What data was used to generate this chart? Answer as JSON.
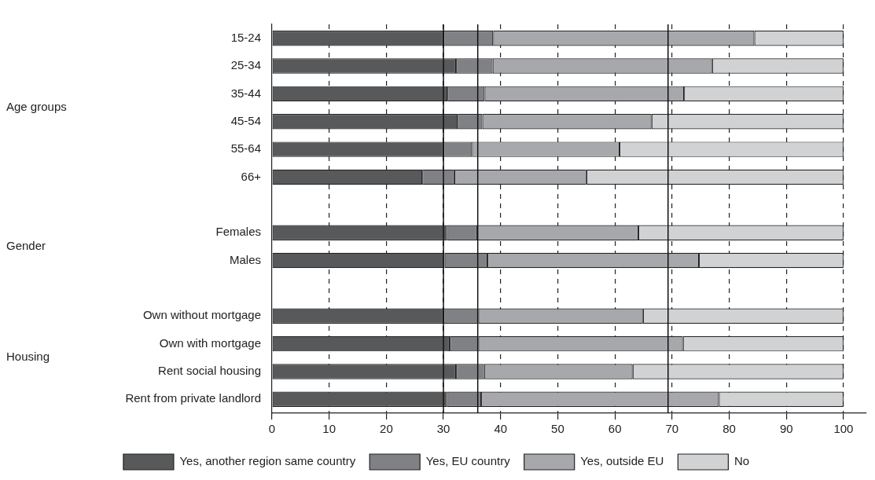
{
  "chart_data": {
    "type": "bar",
    "orientation": "horizontal",
    "stacked": true,
    "categories": [
      "15-24",
      "25-34",
      "35-44",
      "45-54",
      "55-64",
      "66+",
      null,
      "Females",
      "Males",
      null,
      "Own without mortgage",
      "Own with mortgage",
      "Rent social housing",
      "Rent from private landlord"
    ],
    "series": [
      {
        "name": "Yes, another region same country",
        "color": "#58595b",
        "values": [
          30.0,
          32.2,
          30.7,
          32.5,
          30.0,
          26.3,
          null,
          30.6,
          30.2,
          null,
          30.0,
          31.1,
          32.2,
          30.6
        ]
      },
      {
        "name": "Yes, EU country",
        "color": "#808184",
        "values": [
          8.7,
          6.4,
          6.5,
          4.3,
          5.0,
          5.6,
          null,
          5.3,
          7.5,
          null,
          6.1,
          5.0,
          4.9,
          6.0
        ]
      },
      {
        "name": "Yes, outside EU",
        "color": "#a7a8ab",
        "values": [
          45.7,
          38.4,
          34.9,
          29.6,
          25.8,
          23.1,
          null,
          28.2,
          37.0,
          null,
          28.8,
          35.8,
          26.0,
          41.6
        ]
      },
      {
        "name": "No",
        "color": "#d1d2d4",
        "values": [
          15.6,
          23.0,
          27.9,
          33.6,
          39.2,
          45.0,
          null,
          35.9,
          25.3,
          null,
          35.1,
          28.1,
          36.9,
          21.8
        ]
      }
    ],
    "xlim": [
      0,
      104
    ],
    "xticks": [
      0,
      10,
      20,
      30,
      40,
      50,
      60,
      70,
      80,
      90,
      100
    ],
    "grid": "x",
    "line_style": "dashed",
    "legend": "bottom",
    "ref_lines": [
      {
        "axis": "x",
        "value": 30
      },
      {
        "axis": "x",
        "value": 36
      },
      {
        "axis": "x",
        "value": 69.3
      }
    ],
    "annotations": [
      "Age groups",
      "Gender",
      "Housing"
    ]
  }
}
